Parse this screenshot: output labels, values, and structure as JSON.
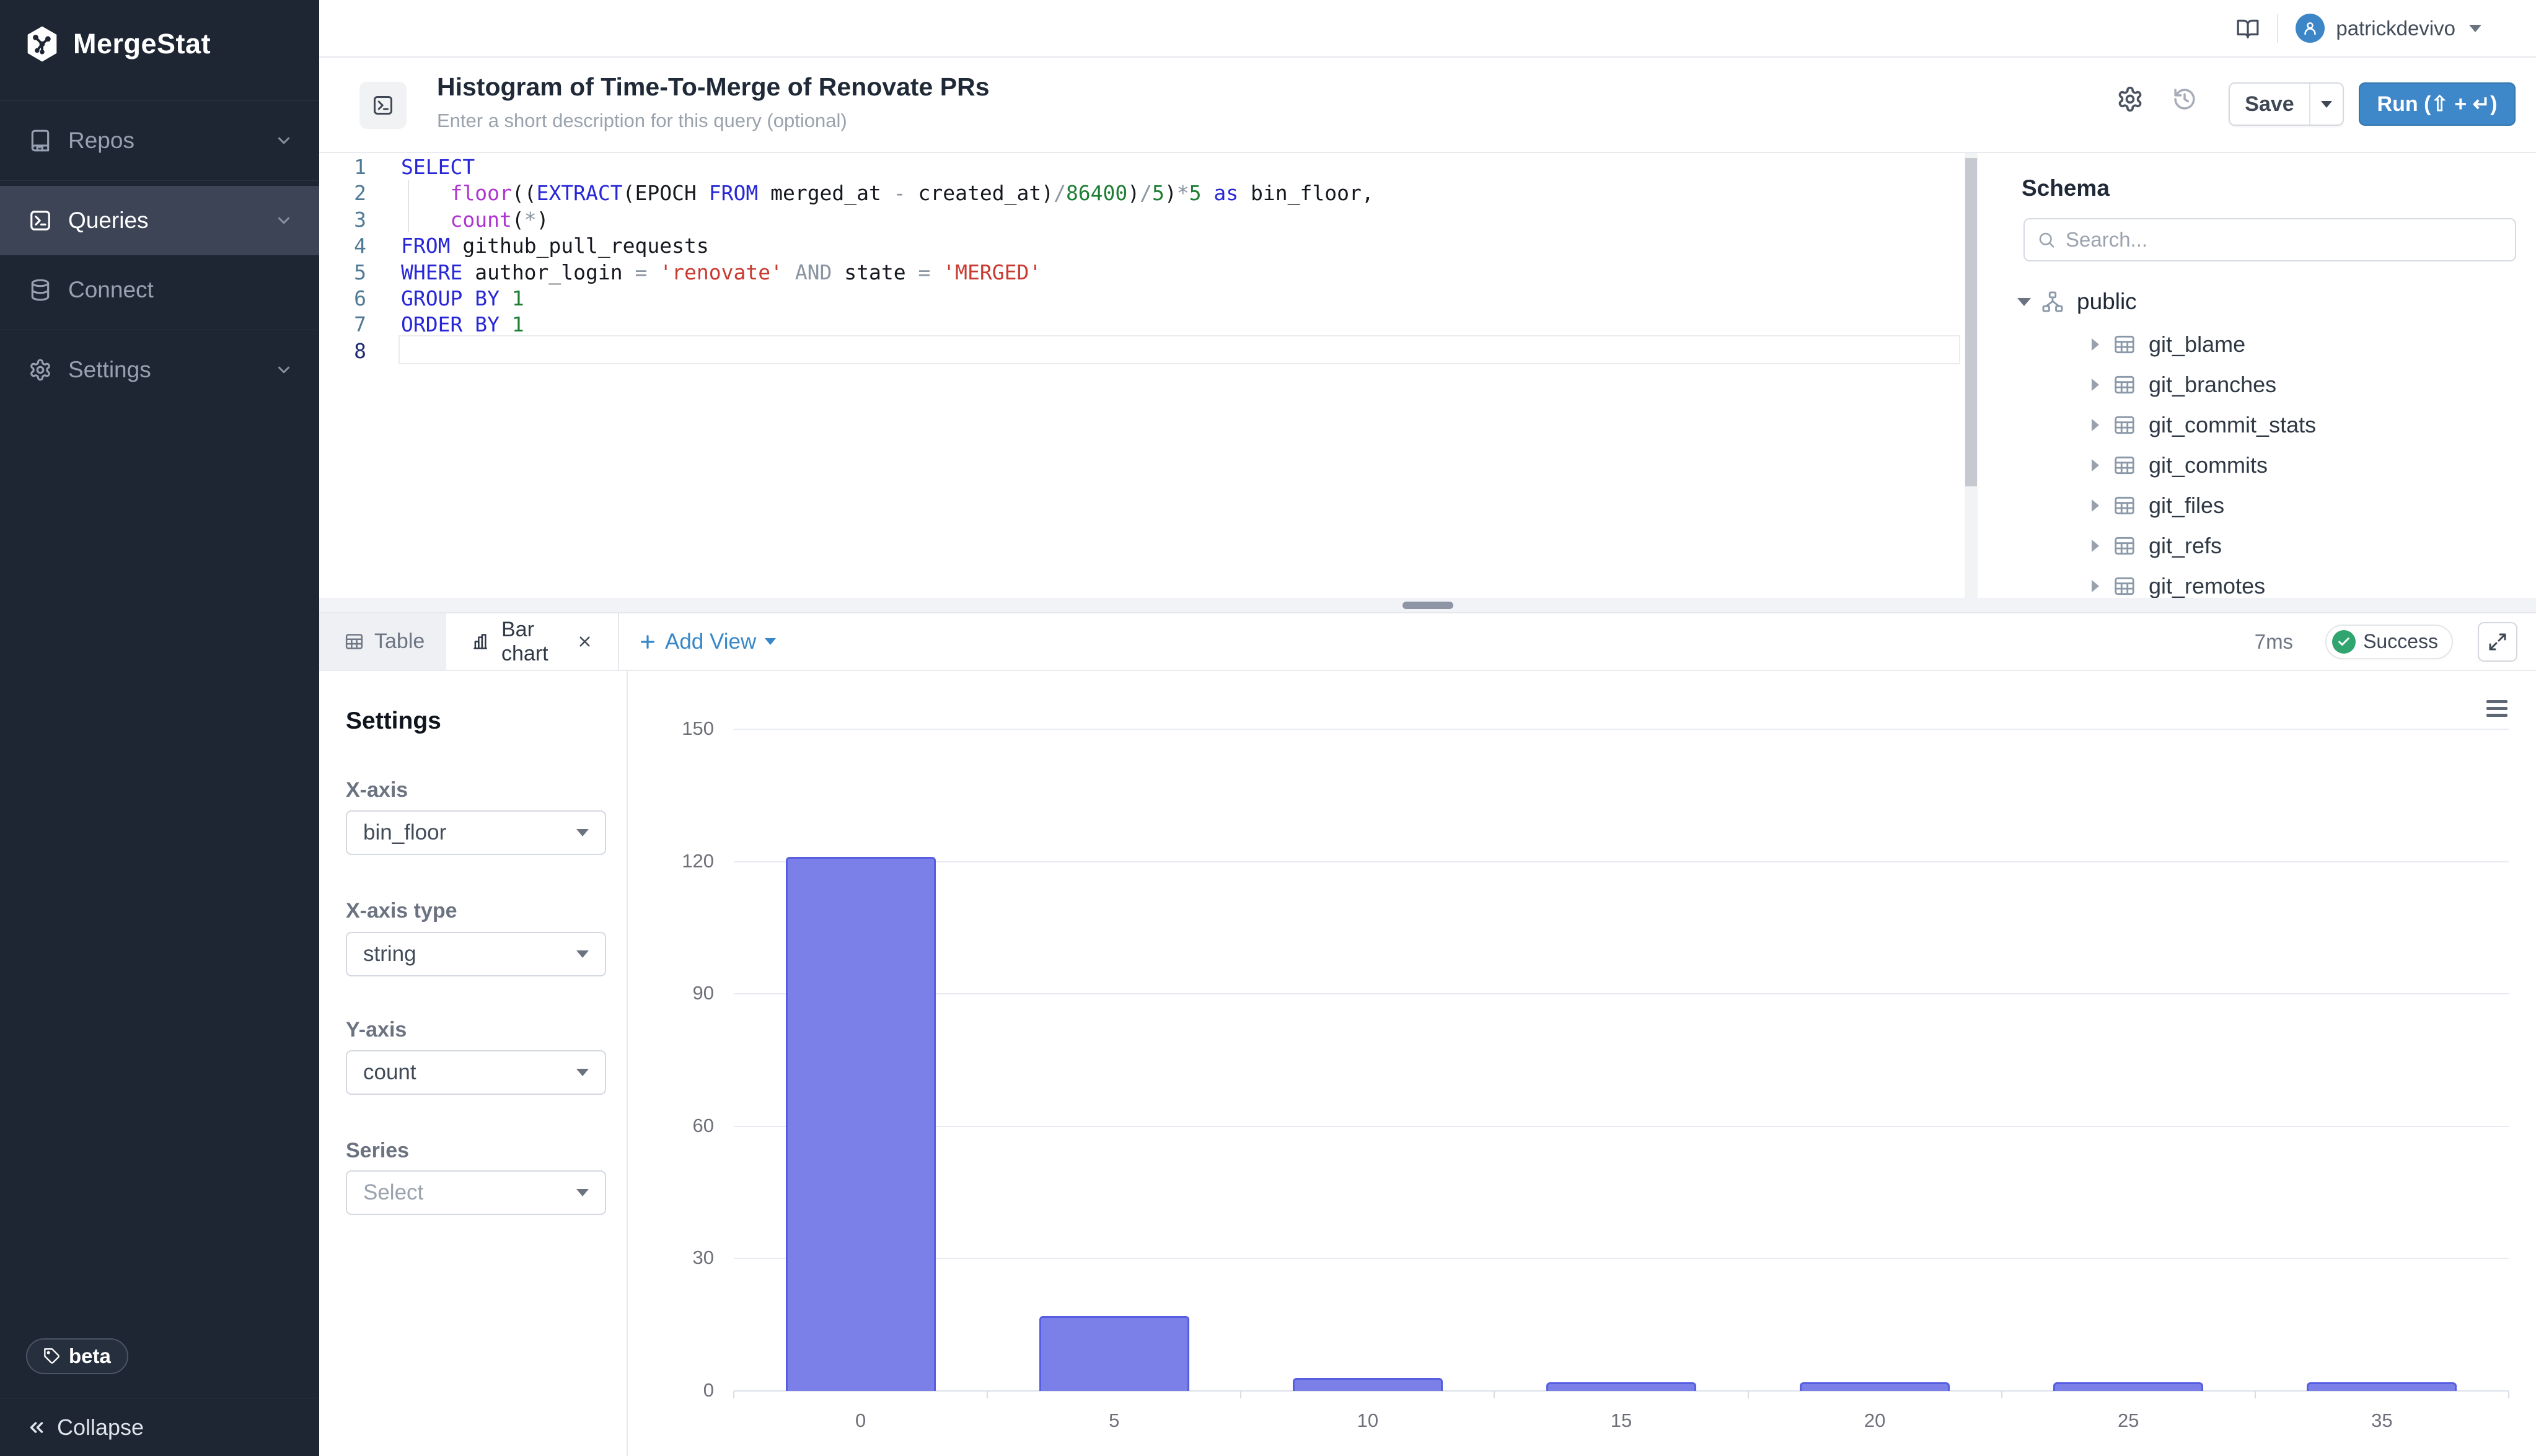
{
  "app": {
    "name": "MergeStat"
  },
  "top_bar": {
    "user": "patrickdevivo"
  },
  "sidebar": {
    "groups": [
      {
        "items": [
          {
            "label": "Repos",
            "icon": "book",
            "chevron": true,
            "active": false
          }
        ]
      },
      {
        "items": [
          {
            "label": "Queries",
            "icon": "terminal",
            "chevron": true,
            "active": true
          },
          {
            "label": "Connect",
            "icon": "database",
            "chevron": false,
            "active": false
          }
        ]
      },
      {
        "items": [
          {
            "label": "Settings",
            "icon": "gear",
            "chevron": true,
            "active": false
          }
        ]
      }
    ],
    "beta_label": "beta",
    "collapse_label": "Collapse"
  },
  "query_header": {
    "title": "Histogram of Time-To-Merge of Renovate PRs",
    "description_placeholder": "Enter a short description for this query (optional)",
    "save_label": "Save",
    "run_label": "Run (⇧ + ↵)"
  },
  "editor": {
    "lines": [
      {
        "n": "1",
        "t": [
          [
            "SELECT",
            "kw"
          ]
        ]
      },
      {
        "n": "2",
        "t": [
          [
            "    ",
            "pl"
          ],
          [
            "floor",
            "fn"
          ],
          [
            "((",
            "pl"
          ],
          [
            "EXTRACT",
            "kw"
          ],
          [
            "(EPOCH ",
            "pl"
          ],
          [
            "FROM",
            "kw"
          ],
          [
            " merged_at ",
            "pl"
          ],
          [
            "-",
            "op"
          ],
          [
            " created_at)",
            "pl"
          ],
          [
            "/",
            "op"
          ],
          [
            "86400",
            "num"
          ],
          [
            ")",
            "pl"
          ],
          [
            "/",
            "op"
          ],
          [
            "5",
            "num"
          ],
          [
            ")",
            "pl"
          ],
          [
            "*",
            "op"
          ],
          [
            "5",
            "num"
          ],
          [
            " ",
            "pl"
          ],
          [
            "as",
            "kw"
          ],
          [
            " bin_floor,",
            "pl"
          ]
        ]
      },
      {
        "n": "3",
        "t": [
          [
            "    ",
            "pl"
          ],
          [
            "count",
            "fn"
          ],
          [
            "(",
            "pl"
          ],
          [
            "*",
            "op"
          ],
          [
            ")",
            "pl"
          ]
        ]
      },
      {
        "n": "4",
        "t": [
          [
            "FROM",
            "kw"
          ],
          [
            " github_pull_requests",
            "pl"
          ]
        ]
      },
      {
        "n": "5",
        "t": [
          [
            "WHERE",
            "kw"
          ],
          [
            " author_login ",
            "pl"
          ],
          [
            "=",
            "op"
          ],
          [
            " ",
            "pl"
          ],
          [
            "'renovate'",
            "str"
          ],
          [
            " ",
            "pl"
          ],
          [
            "AND",
            "op"
          ],
          [
            " state ",
            "pl"
          ],
          [
            "=",
            "op"
          ],
          [
            " ",
            "pl"
          ],
          [
            "'MERGED'",
            "str"
          ]
        ]
      },
      {
        "n": "6",
        "t": [
          [
            "GROUP",
            "kw"
          ],
          [
            " ",
            "pl"
          ],
          [
            "BY",
            "kw"
          ],
          [
            " ",
            "pl"
          ],
          [
            "1",
            "num"
          ]
        ]
      },
      {
        "n": "7",
        "t": [
          [
            "ORDER",
            "kw"
          ],
          [
            " ",
            "pl"
          ],
          [
            "BY",
            "kw"
          ],
          [
            " ",
            "pl"
          ],
          [
            "1",
            "num"
          ]
        ]
      },
      {
        "n": "8",
        "t": [],
        "active": true
      }
    ]
  },
  "schema": {
    "heading": "Schema",
    "search_placeholder": "Search...",
    "tree": [
      {
        "label": "public",
        "level": 0,
        "expanded": true
      },
      {
        "label": "git_blame",
        "level": 1
      },
      {
        "label": "git_branches",
        "level": 1
      },
      {
        "label": "git_commit_stats",
        "level": 1
      },
      {
        "label": "git_commits",
        "level": 1
      },
      {
        "label": "git_files",
        "level": 1
      },
      {
        "label": "git_refs",
        "level": 1
      },
      {
        "label": "git_remotes",
        "level": 1,
        "clipped": true
      }
    ]
  },
  "results": {
    "tabs": [
      {
        "label": "Table",
        "icon": "table",
        "active": false,
        "closable": false
      },
      {
        "label": "Bar chart",
        "icon": "bar-chart",
        "active": true,
        "closable": true
      }
    ],
    "add_view_label": "Add View",
    "duration": "7ms",
    "status": "Success"
  },
  "chart_settings": {
    "heading": "Settings",
    "fields": [
      {
        "label": "X-axis",
        "value": "bin_floor",
        "placeholder": false
      },
      {
        "label": "X-axis type",
        "value": "string",
        "placeholder": false
      },
      {
        "label": "Y-axis",
        "value": "count",
        "placeholder": false
      },
      {
        "label": "Series",
        "value": "Select",
        "placeholder": true
      }
    ]
  },
  "chart_data": {
    "type": "bar",
    "categories": [
      "0",
      "5",
      "10",
      "15",
      "20",
      "25",
      "35"
    ],
    "values": [
      121,
      17,
      3,
      2,
      2,
      2,
      2
    ],
    "title": "",
    "xlabel": "bin_floor",
    "ylabel": "count",
    "ylim": [
      0,
      150
    ],
    "yticks": [
      0,
      30,
      60,
      90,
      120,
      150
    ],
    "grid": true,
    "legend": false,
    "bar_color": "#7b80e9",
    "bar_border_color": "#575ee2"
  },
  "colors": {
    "accent_blue": "#3c86c8",
    "success_green": "#31a56f",
    "sidebar_bg": "#1e2633",
    "sidebar_active_bg": "#3c4456"
  }
}
